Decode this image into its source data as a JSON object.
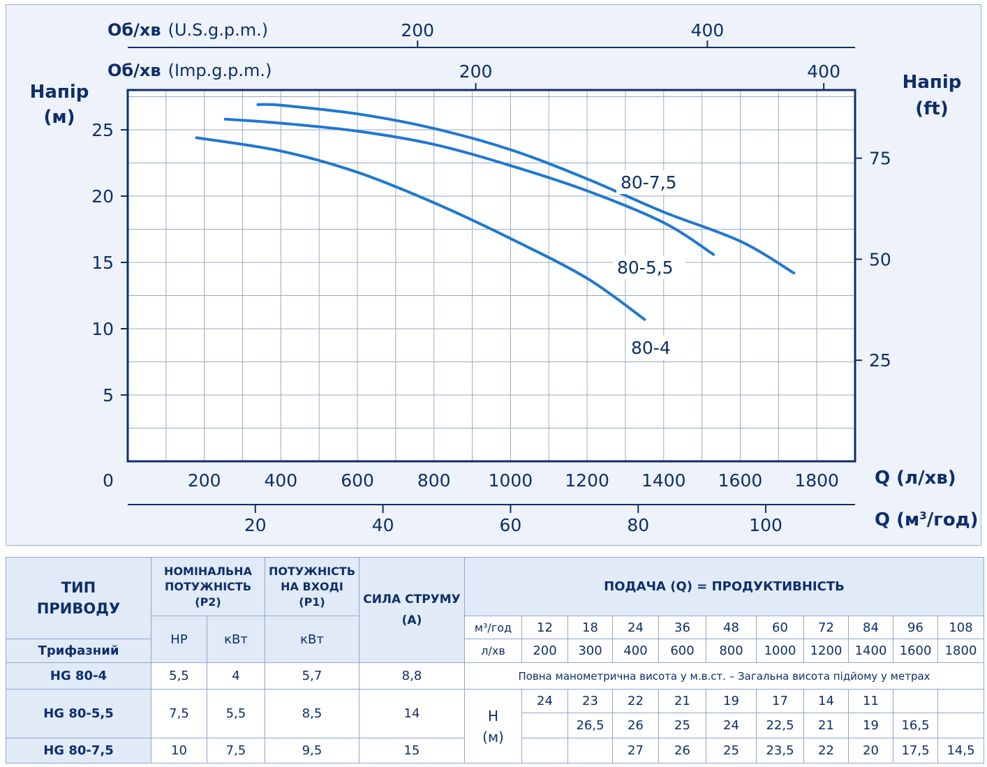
{
  "chart_data": {
    "type": "line",
    "title": "",
    "y_left": {
      "label_line1": "Напір",
      "label_line2": "(м)",
      "range": [
        0,
        28
      ],
      "ticks": [
        5,
        10,
        15,
        20,
        25
      ]
    },
    "y_right": {
      "label_line1": "Напір",
      "label_line2": "(ft)",
      "range": [
        0,
        91.86
      ],
      "ticks": [
        25,
        50,
        75
      ]
    },
    "x_main": {
      "label": "Q (л/хв)",
      "range": [
        0,
        1900
      ],
      "ticks": [
        0,
        200,
        400,
        600,
        800,
        1000,
        1200,
        1400,
        1600,
        1800
      ]
    },
    "x_secondary": {
      "label_prefix": "Q (м",
      "label_sup": "3",
      "label_suffix": "/год)",
      "range": [
        0,
        114
      ],
      "ticks": [
        20,
        40,
        60,
        80,
        100
      ]
    },
    "top_axis_usgpm": {
      "label_bold": "Об/хв",
      "label_unit": "(U.S.g.p.m.)",
      "range": [
        0,
        501.9
      ],
      "ticks": [
        200,
        400
      ]
    },
    "top_axis_impgpm": {
      "label_bold": "Об/хв",
      "label_unit": "(Imp.g.p.m.)",
      "range": [
        0,
        418
      ],
      "ticks": [
        200,
        400
      ]
    },
    "grid": true,
    "series": [
      {
        "name": "80-4",
        "color": "#1f78d1",
        "points": [
          [
            180,
            24.4
          ],
          [
            400,
            23.4
          ],
          [
            600,
            21.8
          ],
          [
            800,
            19.5
          ],
          [
            1000,
            16.8
          ],
          [
            1200,
            13.8
          ],
          [
            1350,
            10.7
          ]
        ]
      },
      {
        "name": "80-5,5",
        "color": "#1f78d1",
        "points": [
          [
            255,
            25.8
          ],
          [
            400,
            25.5
          ],
          [
            600,
            24.9
          ],
          [
            800,
            23.9
          ],
          [
            1000,
            22.3
          ],
          [
            1200,
            20.4
          ],
          [
            1400,
            18.0
          ],
          [
            1530,
            15.6
          ]
        ]
      },
      {
        "name": "80-7,5",
        "color": "#1f78d1",
        "points": [
          [
            340,
            26.9
          ],
          [
            400,
            26.85
          ],
          [
            600,
            26.2
          ],
          [
            800,
            25.1
          ],
          [
            1000,
            23.5
          ],
          [
            1200,
            21.3
          ],
          [
            1400,
            18.8
          ],
          [
            1600,
            16.6
          ],
          [
            1740,
            14.2
          ]
        ]
      }
    ]
  },
  "table": {
    "col_type": {
      "line1": "ТИП",
      "line2": "ПРИВОДУ"
    },
    "col_p2": {
      "line1": "НОМІНАЛЬНА",
      "line2": "ПОТУЖНІСТЬ",
      "line3": "(P2)"
    },
    "col_p1": {
      "line1": "ПОТУЖНІСТЬ",
      "line2": "НА ВХОДІ",
      "line3": "(P1)"
    },
    "col_current": {
      "line1": "СИЛА СТРУМУ",
      "line2": "(А)"
    },
    "col_flow": "ПОДАЧА (Q) = ПРОДУКТИВНІСТЬ",
    "subheader_phase": "Трифазний",
    "unit_hp": "HP",
    "unit_kw": "кВт",
    "unit_kw_p1": "кВт",
    "unit_m3h": "м³/год",
    "unit_lmin": "л/хв",
    "flow_m3h": [
      "12",
      "18",
      "24",
      "36",
      "48",
      "60",
      "72",
      "84",
      "96",
      "108"
    ],
    "flow_lmin": [
      "200",
      "300",
      "400",
      "600",
      "800",
      "1000",
      "1200",
      "1400",
      "1600",
      "1800"
    ],
    "head_note": "Повна манометрична висота у м.в.ст. – Загальна висота підйому у метрах",
    "head_label_line1": "H",
    "head_label_line2": "(м)",
    "rows": [
      {
        "model": "HG 80-4",
        "hp": "5,5",
        "kw": "4",
        "p1": "5,7",
        "amp": "8,8",
        "heads": [
          "24",
          "23",
          "22",
          "21",
          "19",
          "17",
          "14",
          "11",
          "",
          ""
        ]
      },
      {
        "model": "HG 80-5,5",
        "hp": "7,5",
        "kw": "5,5",
        "p1": "8,5",
        "amp": "14",
        "heads": [
          "",
          "26,5",
          "26",
          "25",
          "24",
          "22,5",
          "21",
          "19",
          "16,5",
          ""
        ]
      },
      {
        "model": "HG 80-7,5",
        "hp": "10",
        "kw": "7,5",
        "p1": "9,5",
        "amp": "15",
        "heads": [
          "",
          "",
          "27",
          "26",
          "25",
          "23,5",
          "22",
          "20",
          "17,5",
          "14,5"
        ]
      }
    ]
  }
}
